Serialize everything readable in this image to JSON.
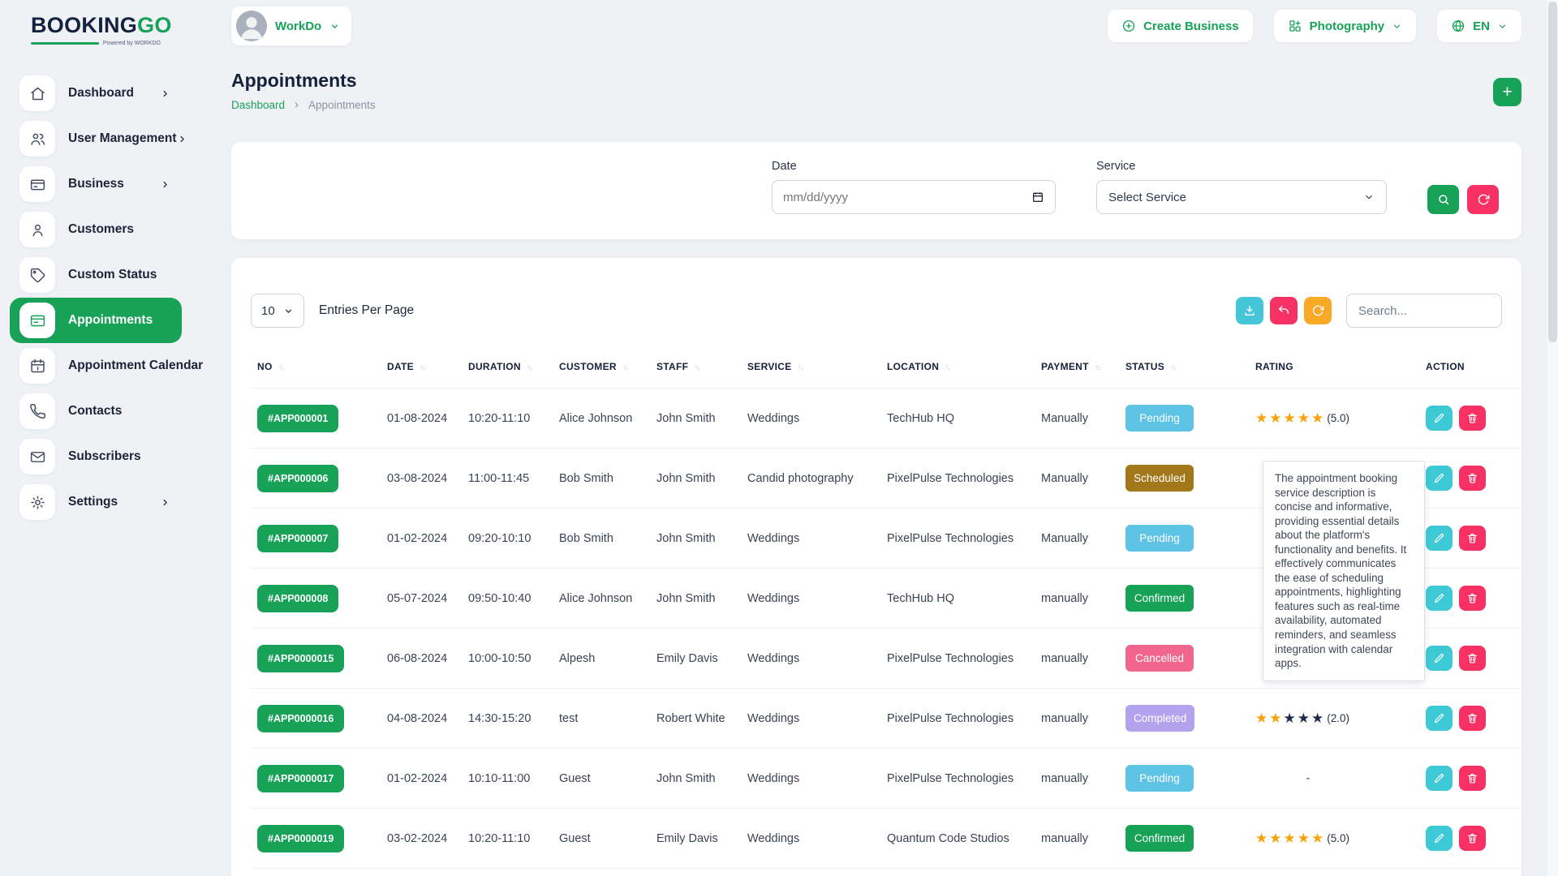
{
  "brand": {
    "name_primary": "BOOKING",
    "name_secondary": "GO",
    "powered_by": "Powered by WORKDO"
  },
  "header": {
    "workspace": "WorkDo",
    "create_business_label": "Create Business",
    "business_type_label": "Photography",
    "language_label": "EN"
  },
  "sidebar": {
    "items": [
      {
        "label": "Dashboard",
        "icon": "home-icon",
        "chevron": true,
        "active": false
      },
      {
        "label": "User Management",
        "icon": "users-icon",
        "chevron": true,
        "active": false
      },
      {
        "label": "Business",
        "icon": "business-card-icon",
        "chevron": true,
        "active": false
      },
      {
        "label": "Customers",
        "icon": "person-icon",
        "chevron": false,
        "active": false
      },
      {
        "label": "Custom Status",
        "icon": "tag-icon",
        "chevron": false,
        "active": false
      },
      {
        "label": "Appointments",
        "icon": "appointment-card-icon",
        "chevron": false,
        "active": true
      },
      {
        "label": "Appointment Calendar",
        "icon": "calendar-icon",
        "chevron": false,
        "active": false
      },
      {
        "label": "Contacts",
        "icon": "phone-icon",
        "chevron": false,
        "active": false
      },
      {
        "label": "Subscribers",
        "icon": "mail-icon",
        "chevron": false,
        "active": false
      },
      {
        "label": "Settings",
        "icon": "gear-icon",
        "chevron": true,
        "active": false
      }
    ]
  },
  "page": {
    "title": "Appointments",
    "breadcrumb_link": "Dashboard",
    "breadcrumb_current": "Appointments",
    "add_button_label": "+"
  },
  "filters": {
    "date_label": "Date",
    "date_placeholder": "mm/dd/yyyy",
    "service_label": "Service",
    "service_value": "Select Service"
  },
  "table_controls": {
    "entries_value": "10",
    "entries_label": "Entries Per Page",
    "search_placeholder": "Search..."
  },
  "table": {
    "columns": [
      "NO",
      "DATE",
      "DURATION",
      "CUSTOMER",
      "STAFF",
      "SERVICE",
      "LOCATION",
      "PAYMENT",
      "STATUS",
      "RATING",
      "ACTION"
    ],
    "sortable": [
      true,
      true,
      true,
      true,
      true,
      true,
      true,
      true,
      true,
      false,
      false
    ],
    "rows": [
      {
        "no": "#APP000001",
        "date": "01-08-2024",
        "duration": "10:20-11:10",
        "customer": "Alice Johnson",
        "staff": "John Smith",
        "service": "Weddings",
        "location": "TechHub HQ",
        "payment": "Manually",
        "status": "Pending",
        "rating": {
          "stars": 5,
          "label": "(5.0)"
        }
      },
      {
        "no": "#APP000006",
        "date": "03-08-2024",
        "duration": "11:00-11:45",
        "customer": "Bob Smith",
        "staff": "John Smith",
        "service": "Candid photography",
        "location": "PixelPulse Technologies",
        "payment": "Manually",
        "status": "Scheduled",
        "rating": null
      },
      {
        "no": "#APP000007",
        "date": "01-02-2024",
        "duration": "09:20-10:10",
        "customer": "Bob Smith",
        "staff": "John Smith",
        "service": "Weddings",
        "location": "PixelPulse Technologies",
        "payment": "Manually",
        "status": "Pending",
        "rating": null
      },
      {
        "no": "#APP000008",
        "date": "05-07-2024",
        "duration": "09:50-10:40",
        "customer": "Alice Johnson",
        "staff": "John Smith",
        "service": "Weddings",
        "location": "TechHub HQ",
        "payment": "manually",
        "status": "Confirmed",
        "rating": null
      },
      {
        "no": "#APP0000015",
        "date": "06-08-2024",
        "duration": "10:00-10:50",
        "customer": "Alpesh",
        "staff": "Emily Davis",
        "service": "Weddings",
        "location": "PixelPulse Technologies",
        "payment": "manually",
        "status": "Cancelled",
        "rating": {
          "stars": 0,
          "label": "-"
        }
      },
      {
        "no": "#APP0000016",
        "date": "04-08-2024",
        "duration": "14:30-15:20",
        "customer": "test",
        "staff": "Robert White",
        "service": "Weddings",
        "location": "PixelPulse Technologies",
        "payment": "manually",
        "status": "Completed",
        "rating": {
          "stars": 2,
          "label": "(2.0)"
        }
      },
      {
        "no": "#APP0000017",
        "date": "01-02-2024",
        "duration": "10:10-11:00",
        "customer": "Guest",
        "staff": "John Smith",
        "service": "Weddings",
        "location": "PixelPulse Technologies",
        "payment": "manually",
        "status": "Pending",
        "rating": {
          "stars": 0,
          "label": "-"
        }
      },
      {
        "no": "#APP0000019",
        "date": "03-02-2024",
        "duration": "10:20-11:10",
        "customer": "Guest",
        "staff": "Emily Davis",
        "service": "Weddings",
        "location": "Quantum Code Studios",
        "payment": "manually",
        "status": "Confirmed",
        "rating": {
          "stars": 5,
          "label": "(5.0)"
        }
      }
    ]
  },
  "tooltip": {
    "text": "The appointment booking service description is concise and informative, providing essential details about the platform's functionality and benefits. It effectively communicates the ease of scheduling appointments, highlighting features such as real-time availability, automated reminders, and seamless integration with calendar apps."
  },
  "colors": {
    "primary_green": "#17a258",
    "danger_pink": "#f73164",
    "info_cyan": "#3ec9d6",
    "warning_orange": "#f9a826",
    "star_filled": "#f8a20a",
    "star_empty": "#1c2b4a",
    "status": {
      "Pending": "#5fc3e5",
      "Scheduled": "#a3781b",
      "Confirmed": "#17a258",
      "Cancelled": "#f1668f",
      "Completed": "#b3a2ee"
    }
  }
}
